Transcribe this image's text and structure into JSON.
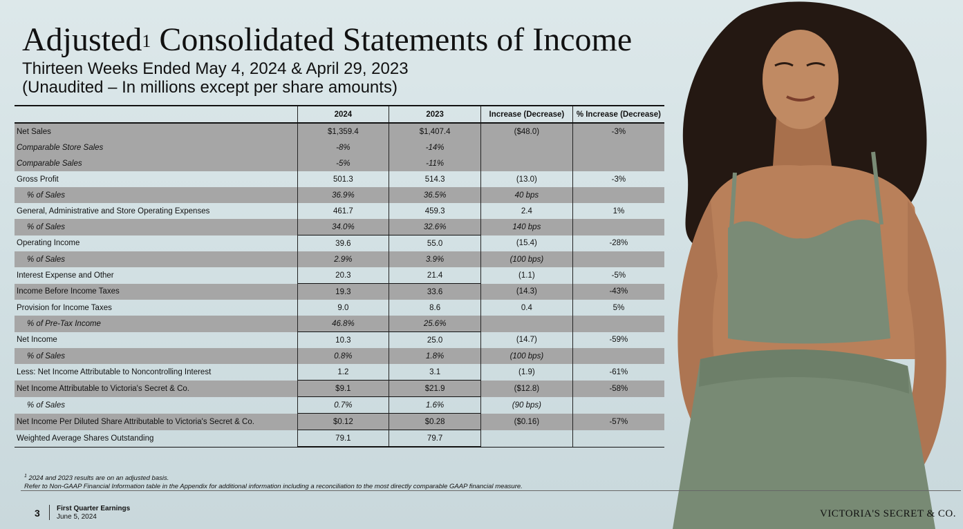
{
  "title": {
    "main": "Adjusted",
    "sup": "1",
    "rest": " Consolidated Statements of Income"
  },
  "subtitle": {
    "line1": "Thirteen Weeks Ended May 4, 2024 & April 29, 2023",
    "line2": "(Unaudited – In millions except per share amounts)"
  },
  "table": {
    "headers": [
      "",
      "2024",
      "2023",
      "Increase (Decrease)",
      "% Increase (Decrease)"
    ],
    "rows": [
      {
        "label": "Net Sales",
        "v2024": "$1,359.4",
        "v2023": "$1,407.4",
        "change": "($48.0)",
        "pct": "-3%"
      },
      {
        "label": "Comparable Store Sales",
        "v2024": "-8%",
        "v2023": "-14%",
        "change": "",
        "pct": ""
      },
      {
        "label": "Comparable Sales",
        "v2024": "-5%",
        "v2023": "-11%",
        "change": "",
        "pct": ""
      },
      {
        "label": "Gross Profit",
        "v2024": "501.3",
        "v2023": "514.3",
        "change": "(13.0)",
        "pct": "-3%"
      },
      {
        "label": "% of Sales",
        "v2024": "36.9%",
        "v2023": "36.5%",
        "change": "40 bps",
        "pct": ""
      },
      {
        "label": "General, Administrative and Store Operating Expenses",
        "v2024": "461.7",
        "v2023": "459.3",
        "change": "2.4",
        "pct": "1%"
      },
      {
        "label": "% of Sales",
        "v2024": "34.0%",
        "v2023": "32.6%",
        "change": "140 bps",
        "pct": ""
      },
      {
        "label": "Operating Income",
        "v2024": "39.6",
        "v2023": "55.0",
        "change": "(15.4)",
        "pct": "-28%"
      },
      {
        "label": "% of Sales",
        "v2024": "2.9%",
        "v2023": "3.9%",
        "change": "(100 bps)",
        "pct": ""
      },
      {
        "label": "Interest Expense and Other",
        "v2024": "20.3",
        "v2023": "21.4",
        "change": "(1.1)",
        "pct": "-5%"
      },
      {
        "label": "Income Before Income Taxes",
        "v2024": "19.3",
        "v2023": "33.6",
        "change": "(14.3)",
        "pct": "-43%"
      },
      {
        "label": "Provision for Income Taxes",
        "v2024": "9.0",
        "v2023": "8.6",
        "change": "0.4",
        "pct": "5%"
      },
      {
        "label": "% of Pre-Tax Income",
        "v2024": "46.8%",
        "v2023": "25.6%",
        "change": "",
        "pct": ""
      },
      {
        "label": "Net Income",
        "v2024": "10.3",
        "v2023": "25.0",
        "change": "(14.7)",
        "pct": "-59%"
      },
      {
        "label": "% of Sales",
        "v2024": "0.8%",
        "v2023": "1.8%",
        "change": "(100 bps)",
        "pct": ""
      },
      {
        "label": "Less: Net Income Attributable to Noncontrolling Interest",
        "v2024": "1.2",
        "v2023": "3.1",
        "change": "(1.9)",
        "pct": "-61%"
      },
      {
        "label": "Net Income Attributable to Victoria's Secret & Co.",
        "v2024": "$9.1",
        "v2023": "$21.9",
        "change": "($12.8)",
        "pct": "-58%"
      },
      {
        "label": "% of Sales",
        "v2024": "0.7%",
        "v2023": "1.6%",
        "change": "(90 bps)",
        "pct": ""
      },
      {
        "label": "Net Income Per Diluted Share Attributable to Victoria's Secret & Co.",
        "v2024": "$0.12",
        "v2023": "$0.28",
        "change": "($0.16)",
        "pct": "-57%"
      },
      {
        "label": "Weighted Average Shares Outstanding",
        "v2024": "79.1",
        "v2023": "79.7",
        "change": "",
        "pct": ""
      }
    ]
  },
  "footnote": {
    "marker": "1",
    "line1": " 2024 and 2023 results are on an adjusted basis.",
    "line2": "Refer to Non-GAAP Financial Information table in the Appendix for additional information including a reconciliation to the most directly comparable GAAP financial measure."
  },
  "footer": {
    "page_number": "3",
    "doc_title": "First Quarter Earnings",
    "date": "June 5, 2024",
    "brand": "VICTORIA'S SECRET & CO."
  },
  "colors": {
    "row_shade": "#a6a6a6",
    "background": "#d3e1e4",
    "garment": "#7a8b76",
    "skin": "#b9805a",
    "hair": "#241812"
  }
}
